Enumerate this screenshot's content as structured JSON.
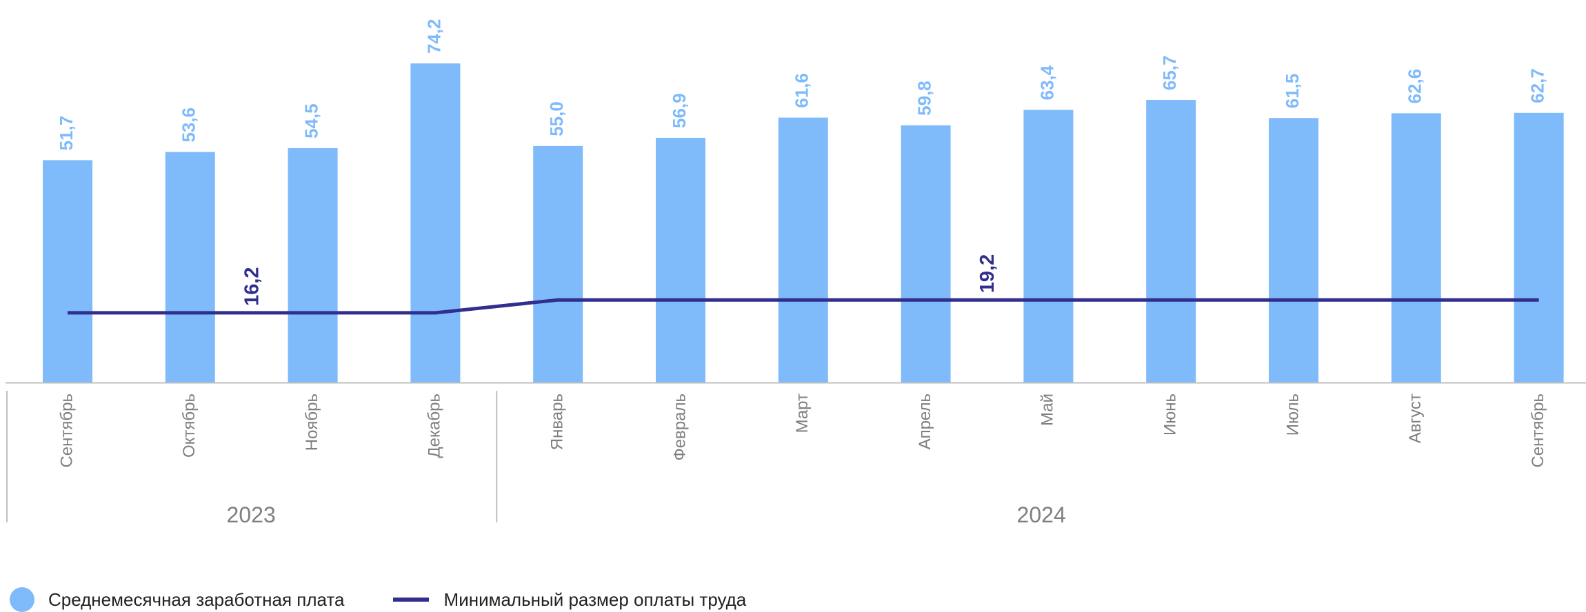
{
  "chart_data": {
    "type": "bar",
    "categories": [
      "Сентябрь",
      "Октябрь",
      "Ноябрь",
      "Декабрь",
      "Январь",
      "Февраль",
      "Март",
      "Апрель",
      "Май",
      "Июнь",
      "Июль",
      "Август",
      "Сентябрь"
    ],
    "years": [
      {
        "label": "2023",
        "count": 4
      },
      {
        "label": "2024",
        "count": 9
      }
    ],
    "series": [
      {
        "name": "Среднемесячная заработная плата",
        "type": "bar",
        "color": "#7FBAFB",
        "values": [
          51.7,
          53.6,
          54.5,
          74.2,
          55.0,
          56.9,
          61.6,
          59.8,
          63.4,
          65.7,
          61.5,
          62.6,
          62.7
        ],
        "labels": [
          "51,7",
          "53,6",
          "54,5",
          "74,2",
          "55,0",
          "56,9",
          "61,6",
          "59,8",
          "63,4",
          "65,7",
          "61,5",
          "62,6",
          "62,7"
        ]
      },
      {
        "name": "Минимальный размер оплаты труда",
        "type": "line",
        "color": "#312E8E",
        "values": [
          16.2,
          16.2,
          16.2,
          16.2,
          19.2,
          19.2,
          19.2,
          19.2,
          19.2,
          19.2,
          19.2,
          19.2,
          19.2
        ],
        "point_labels": [
          {
            "index": 1.5,
            "text": "16,2"
          },
          {
            "index": 7.5,
            "text": "19,2"
          }
        ]
      }
    ],
    "ylim": [
      0,
      80
    ],
    "grid": false,
    "legend": "bottom-left"
  },
  "legend": {
    "bar_label": "Среднемесячная заработная плата",
    "line_label": "Минимальный размер оплаты труда"
  }
}
